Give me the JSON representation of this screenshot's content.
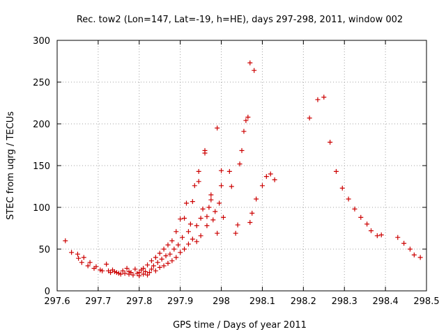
{
  "chart_data": {
    "type": "scatter",
    "title": "Rec. tow2 (Lon=147, Lat=-19, h=HE), days 297-298, 2011, window 002",
    "xlabel": "GPS time / Days of year 2011",
    "ylabel": "STEC from uqrg / TECUs",
    "xlim": [
      297.6,
      298.5
    ],
    "ylim": [
      0,
      300
    ],
    "xticks": [
      "297.6",
      "297.7",
      "297.8",
      "297.9",
      "298",
      "298.1",
      "298.2",
      "298.3",
      "298.4",
      "298.5"
    ],
    "yticks": [
      "0",
      "50",
      "100",
      "150",
      "200",
      "250",
      "300"
    ],
    "grid": true,
    "marker": "plus",
    "point_color": "#cc0000",
    "points": [
      [
        297.62,
        60
      ],
      [
        297.635,
        46
      ],
      [
        297.65,
        44
      ],
      [
        297.652,
        39
      ],
      [
        297.66,
        34
      ],
      [
        297.665,
        40
      ],
      [
        297.675,
        30
      ],
      [
        297.68,
        34
      ],
      [
        297.69,
        27
      ],
      [
        297.695,
        29
      ],
      [
        297.705,
        25
      ],
      [
        297.71,
        24
      ],
      [
        297.72,
        32
      ],
      [
        297.725,
        24
      ],
      [
        297.73,
        22
      ],
      [
        297.735,
        25
      ],
      [
        297.74,
        23
      ],
      [
        297.745,
        22
      ],
      [
        297.75,
        21
      ],
      [
        297.755,
        20
      ],
      [
        297.76,
        24
      ],
      [
        297.765,
        21
      ],
      [
        297.77,
        27
      ],
      [
        297.775,
        20
      ],
      [
        297.775,
        23
      ],
      [
        297.78,
        22
      ],
      [
        297.785,
        19
      ],
      [
        297.79,
        26
      ],
      [
        297.795,
        21
      ],
      [
        297.8,
        18
      ],
      [
        297.8,
        22
      ],
      [
        297.805,
        25
      ],
      [
        297.81,
        20
      ],
      [
        297.81,
        27
      ],
      [
        297.815,
        23
      ],
      [
        297.82,
        19
      ],
      [
        297.82,
        31
      ],
      [
        297.825,
        22
      ],
      [
        297.83,
        26
      ],
      [
        297.83,
        36
      ],
      [
        297.835,
        30
      ],
      [
        297.84,
        24
      ],
      [
        297.84,
        40
      ],
      [
        297.845,
        34
      ],
      [
        297.85,
        28
      ],
      [
        297.85,
        45
      ],
      [
        297.855,
        38
      ],
      [
        297.86,
        30
      ],
      [
        297.86,
        50
      ],
      [
        297.865,
        42
      ],
      [
        297.87,
        33
      ],
      [
        297.87,
        55
      ],
      [
        297.875,
        44
      ],
      [
        297.88,
        36
      ],
      [
        297.88,
        60
      ],
      [
        297.885,
        50
      ],
      [
        297.89,
        40
      ],
      [
        297.89,
        71
      ],
      [
        297.895,
        55
      ],
      [
        297.9,
        46
      ],
      [
        297.9,
        86
      ],
      [
        297.905,
        64
      ],
      [
        297.91,
        50
      ],
      [
        297.91,
        87
      ],
      [
        297.915,
        105
      ],
      [
        297.92,
        56
      ],
      [
        297.92,
        71
      ],
      [
        297.925,
        80
      ],
      [
        297.93,
        62
      ],
      [
        297.93,
        107
      ],
      [
        297.935,
        126
      ],
      [
        297.94,
        59
      ],
      [
        297.94,
        78
      ],
      [
        297.945,
        131
      ],
      [
        297.945,
        143
      ],
      [
        297.95,
        66
      ],
      [
        297.95,
        87
      ],
      [
        297.955,
        98
      ],
      [
        297.96,
        165
      ],
      [
        297.96,
        168
      ],
      [
        297.965,
        78
      ],
      [
        297.965,
        89
      ],
      [
        297.97,
        100
      ],
      [
        297.975,
        109
      ],
      [
        297.975,
        115
      ],
      [
        297.98,
        85
      ],
      [
        297.985,
        95
      ],
      [
        297.99,
        195
      ],
      [
        297.99,
        69
      ],
      [
        297.995,
        105
      ],
      [
        298.0,
        126
      ],
      [
        298.0,
        144
      ],
      [
        298.005,
        88
      ],
      [
        298.02,
        143
      ],
      [
        298.025,
        125
      ],
      [
        298.035,
        69
      ],
      [
        298.04,
        79
      ],
      [
        298.045,
        152
      ],
      [
        298.05,
        168
      ],
      [
        298.055,
        191
      ],
      [
        298.06,
        204
      ],
      [
        298.065,
        208
      ],
      [
        298.07,
        82
      ],
      [
        298.07,
        273
      ],
      [
        298.075,
        93
      ],
      [
        298.08,
        264
      ],
      [
        298.085,
        110
      ],
      [
        298.1,
        126
      ],
      [
        298.11,
        137
      ],
      [
        298.12,
        140
      ],
      [
        298.13,
        133
      ],
      [
        298.215,
        207
      ],
      [
        298.235,
        229
      ],
      [
        298.25,
        232
      ],
      [
        298.265,
        178
      ],
      [
        298.28,
        143
      ],
      [
        298.295,
        123
      ],
      [
        298.31,
        110
      ],
      [
        298.325,
        98
      ],
      [
        298.34,
        88
      ],
      [
        298.355,
        80
      ],
      [
        298.365,
        72
      ],
      [
        298.38,
        66
      ],
      [
        298.39,
        67
      ],
      [
        298.43,
        64
      ],
      [
        298.445,
        57
      ],
      [
        298.46,
        50
      ],
      [
        298.47,
        43
      ],
      [
        298.485,
        40
      ]
    ]
  }
}
